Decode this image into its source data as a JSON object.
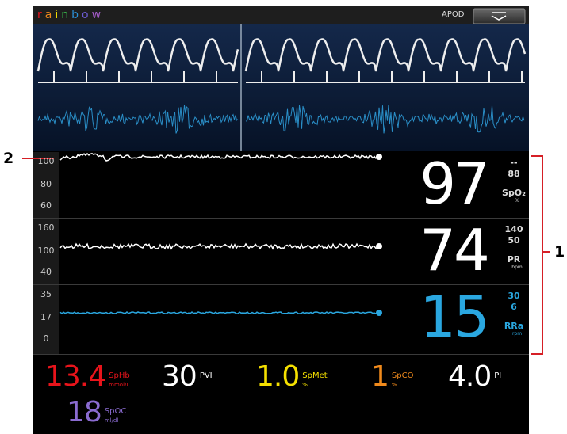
{
  "header": {
    "brand": "rainbow",
    "mode": "APOD"
  },
  "trends": [
    {
      "scale": [
        "100",
        "80",
        "60"
      ],
      "value": "97",
      "upper": "--",
      "lower": "88",
      "label": "SpO₂",
      "unit": "%"
    },
    {
      "scale": [
        "160",
        "100",
        "40"
      ],
      "value": "74",
      "upper": "140",
      "lower": "50",
      "label": "PR",
      "unit": "bpm"
    },
    {
      "scale": [
        "35",
        "17",
        "0"
      ],
      "value": "15",
      "upper": "30",
      "lower": "6",
      "label": "RRa",
      "unit": "rpm"
    }
  ],
  "parameters": [
    {
      "value": "13.4",
      "label": "SpHb",
      "unit": "mmol/L"
    },
    {
      "value": "30",
      "label": "PVI"
    },
    {
      "value": "1.0",
      "label": "SpMet",
      "unit": "%"
    },
    {
      "value": "1",
      "label": "SpCO",
      "unit": "%"
    },
    {
      "value": "4.0",
      "label": "PI"
    },
    {
      "value": "18",
      "label": "SpOC",
      "unit": "ml/dl"
    }
  ],
  "callouts": [
    "2",
    "1"
  ]
}
